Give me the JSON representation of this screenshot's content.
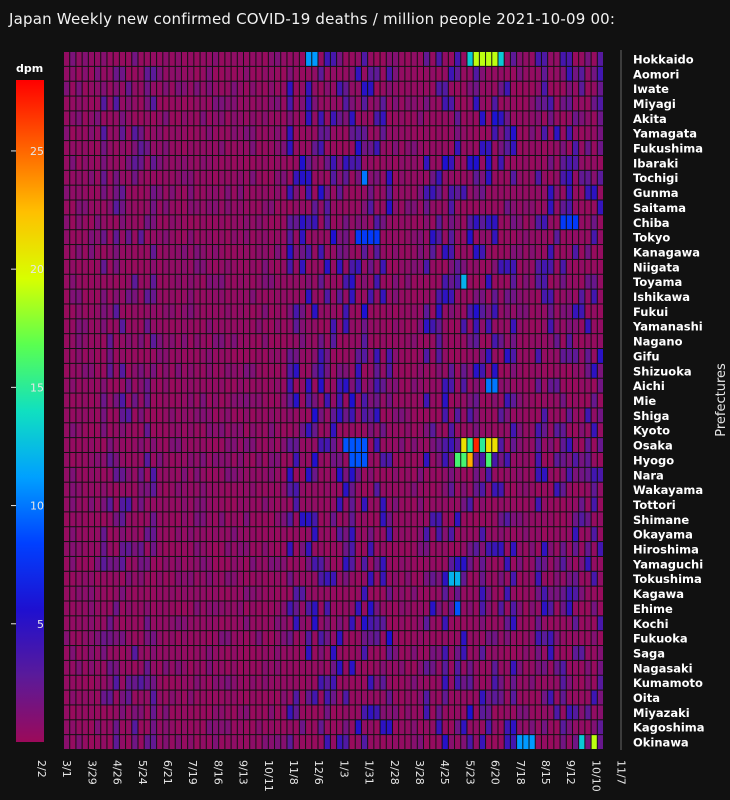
{
  "colors": {
    "background": "#111111",
    "text": "#f2f2f2",
    "colorscale": [
      "#9b0a5a",
      "#5a1a9a",
      "#1e10d0",
      "#0040ff",
      "#00a0ff",
      "#10e0c0",
      "#5aff50",
      "#d8ff00",
      "#ffc000",
      "#ff6000",
      "#ff0000"
    ]
  },
  "chart_data": {
    "type": "heatmap",
    "title": "Japan Weekly new confirmed COVID-19 deaths / million people  2021-10-09 00:",
    "xlabel": "",
    "ylabel": "Prefectures",
    "colorbar": {
      "title": "dpm",
      "range": [
        0,
        28
      ],
      "tick_values": [
        5,
        10,
        15,
        20,
        25
      ],
      "tick_labels": [
        "5",
        "10",
        "15",
        "20",
        "25"
      ]
    },
    "x_tick_labels": [
      "2/2",
      "3/1",
      "3/29",
      "4/26",
      "5/24",
      "6/21",
      "7/19",
      "8/16",
      "9/13",
      "10/11",
      "11/8",
      "12/6",
      "1/3",
      "1/31",
      "2/28",
      "3/28",
      "4/25",
      "5/23",
      "6/20",
      "7/18",
      "8/15",
      "9/12",
      "10/10",
      "11/7"
    ],
    "columns": 87,
    "prefectures": [
      "Hokkaido",
      "Aomori",
      "Iwate",
      "Miyagi",
      "Akita",
      "Yamagata",
      "Fukushima",
      "Ibaraki",
      "Tochigi",
      "Gunma",
      "Saitama",
      "Chiba",
      "Tokyo",
      "Kanagawa",
      "Niigata",
      "Toyama",
      "Ishikawa",
      "Fukui",
      "Yamanashi",
      "Nagano",
      "Gifu",
      "Shizuoka",
      "Aichi",
      "Mie",
      "Shiga",
      "Kyoto",
      "Osaka",
      "Hyogo",
      "Nara",
      "Wakayama",
      "Tottori",
      "Shimane",
      "Okayama",
      "Hiroshima",
      "Yamaguchi",
      "Tokushima",
      "Kagawa",
      "Ehime",
      "Kochi",
      "Fukuoka",
      "Saga",
      "Nagasaki",
      "Kumamoto",
      "Oita",
      "Miyazaki",
      "Kagoshima",
      "Okinawa"
    ],
    "hotspots": [
      {
        "row": "Hokkaido",
        "cols": [
          39,
          40
        ],
        "value": 11
      },
      {
        "row": "Hokkaido",
        "cols": [
          66,
          67,
          68,
          69
        ],
        "value": 19
      },
      {
        "row": "Hokkaido",
        "cols": [
          65,
          70
        ],
        "value": 13
      },
      {
        "row": "Tochigi",
        "cols": [
          48
        ],
        "value": 10
      },
      {
        "row": "Chiba",
        "cols": [
          80,
          81,
          82
        ],
        "value": 8
      },
      {
        "row": "Tokyo",
        "cols": [
          47,
          48,
          49,
          50
        ],
        "value": 8
      },
      {
        "row": "Toyama",
        "cols": [
          64
        ],
        "value": 12
      },
      {
        "row": "Aichi",
        "cols": [
          68,
          69
        ],
        "value": 10
      },
      {
        "row": "Osaka",
        "cols": [
          45,
          46,
          47,
          48
        ],
        "value": 9
      },
      {
        "row": "Osaka",
        "cols": [
          64,
          68,
          69
        ],
        "value": 21
      },
      {
        "row": "Osaka",
        "cols": [
          65,
          67
        ],
        "value": 15
      },
      {
        "row": "Osaka",
        "cols": [
          66
        ],
        "value": 27
      },
      {
        "row": "Hyogo",
        "cols": [
          63,
          64,
          68
        ],
        "value": 16
      },
      {
        "row": "Hyogo",
        "cols": [
          65
        ],
        "value": 23
      },
      {
        "row": "Hyogo",
        "cols": [
          46,
          47,
          48
        ],
        "value": 9
      },
      {
        "row": "Tokushima",
        "cols": [
          62,
          63
        ],
        "value": 12
      },
      {
        "row": "Ehime",
        "cols": [
          63
        ],
        "value": 9
      },
      {
        "row": "Okinawa",
        "cols": [
          73,
          74,
          75
        ],
        "value": 11
      },
      {
        "row": "Okinawa",
        "cols": [
          83
        ],
        "value": 13
      },
      {
        "row": "Okinawa",
        "cols": [
          85
        ],
        "value": 19
      }
    ]
  }
}
